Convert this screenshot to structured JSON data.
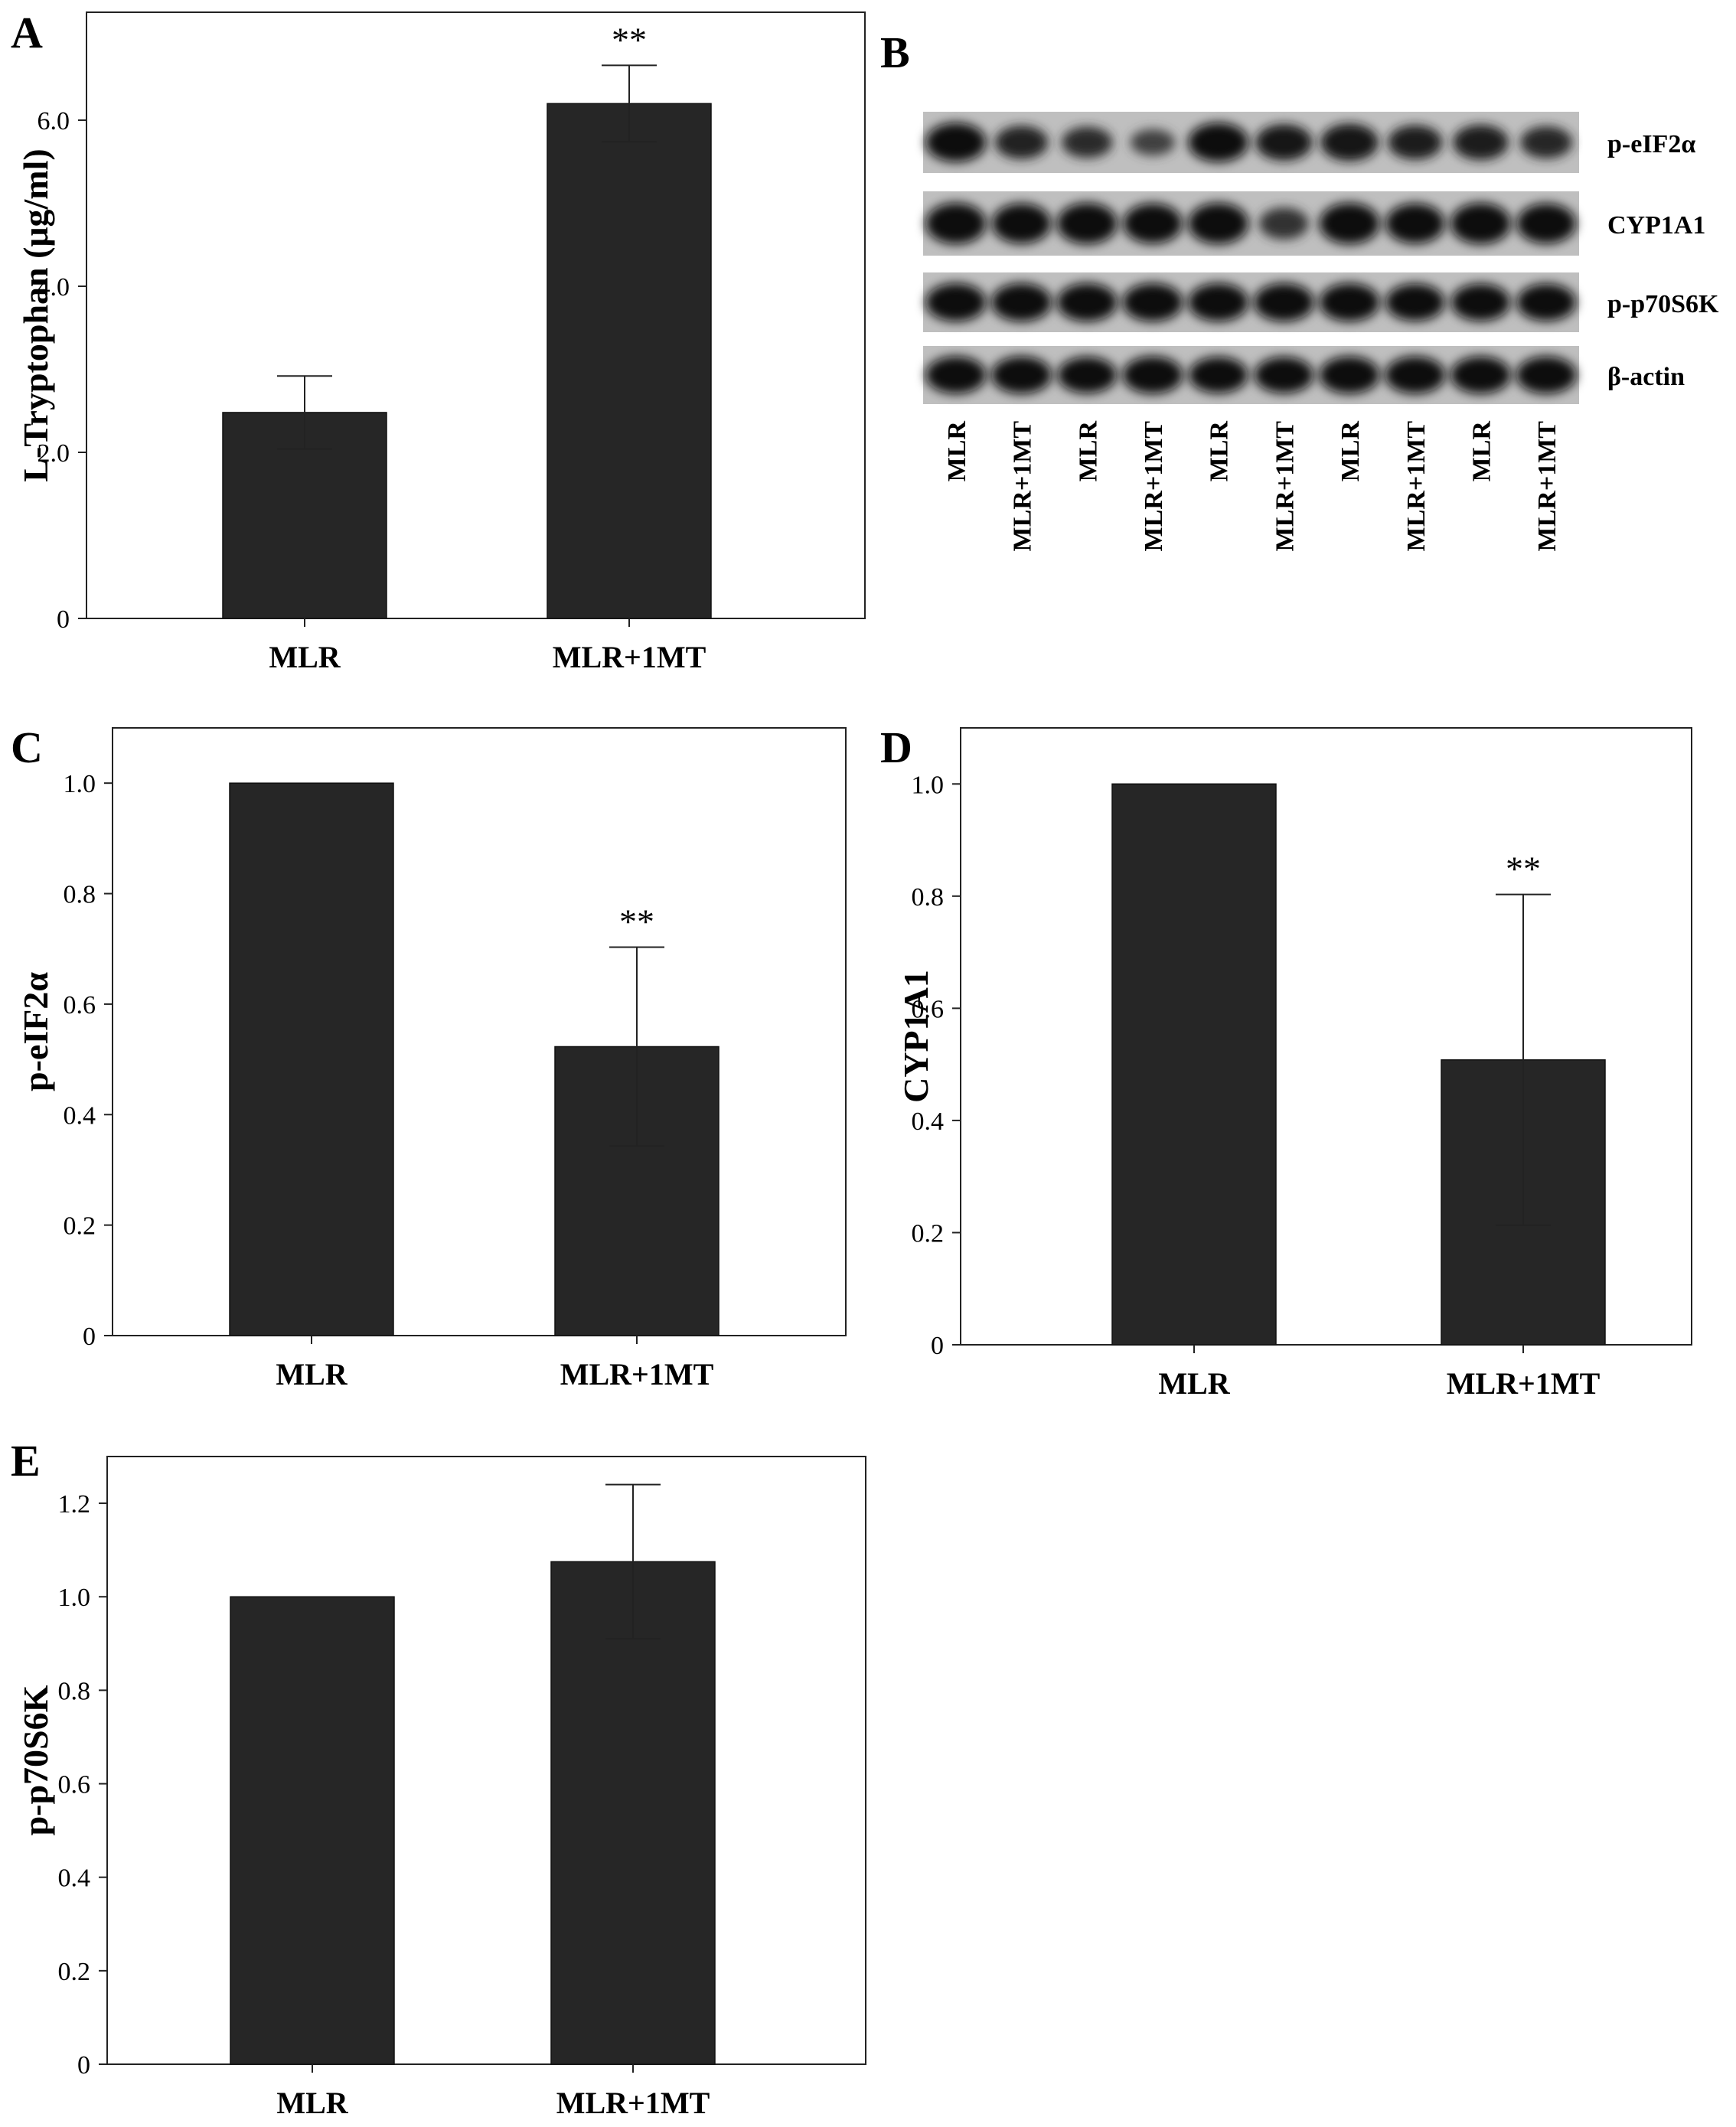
{
  "chart_data": [
    {
      "panel": "A",
      "type": "bar",
      "categories": [
        "MLR",
        "MLR+1MT"
      ],
      "values": [
        2.48,
        6.2
      ],
      "errors": [
        0.44,
        0.46
      ],
      "significance": [
        "",
        "**"
      ],
      "ylabel": "L-Tryptophan (μg/ml)",
      "xlabel": "",
      "ylim": [
        0,
        7.3
      ],
      "yticks": [
        0,
        2.0,
        4.0,
        6.0
      ],
      "ytick_labels": [
        "0",
        "2.0",
        "4.0",
        "6.0"
      ],
      "grid": false,
      "bar_color": "#262626"
    },
    {
      "panel": "C",
      "type": "bar",
      "categories": [
        "MLR",
        "MLR+1MT"
      ],
      "values": [
        1.0,
        0.523
      ],
      "errors": [
        0.0,
        0.18
      ],
      "significance": [
        "",
        "**"
      ],
      "ylabel": "p-eIF2α",
      "xlabel": "",
      "ylim": [
        0,
        1.1
      ],
      "yticks": [
        0,
        0.2,
        0.4,
        0.6,
        0.8,
        1.0
      ],
      "ytick_labels": [
        "0",
        "0.2",
        "0.4",
        "0.6",
        "0.8",
        "1.0"
      ],
      "grid": false,
      "bar_color": "#262626"
    },
    {
      "panel": "D",
      "type": "bar",
      "categories": [
        "MLR",
        "MLR+1MT"
      ],
      "values": [
        1.0,
        0.508
      ],
      "errors": [
        0.0,
        0.295
      ],
      "significance": [
        "",
        "**"
      ],
      "ylabel": "CYP1A1",
      "xlabel": "",
      "ylim": [
        0,
        1.1
      ],
      "yticks": [
        0,
        0.2,
        0.4,
        0.6,
        0.8,
        1.0
      ],
      "ytick_labels": [
        "0",
        "0.2",
        "0.4",
        "0.6",
        "0.8",
        "1.0"
      ],
      "grid": false,
      "bar_color": "#262626"
    },
    {
      "panel": "E",
      "type": "bar",
      "categories": [
        "MLR",
        "MLR+1MT"
      ],
      "values": [
        1.0,
        1.075
      ],
      "errors": [
        0.0,
        0.165
      ],
      "significance": [
        "",
        ""
      ],
      "ylabel": "p-p70S6K",
      "xlabel": "",
      "ylim": [
        0,
        1.3
      ],
      "yticks": [
        0,
        0.2,
        0.4,
        0.6,
        0.8,
        1.0,
        1.2
      ],
      "ytick_labels": [
        "0",
        "0.2",
        "0.4",
        "0.6",
        "0.8",
        "1.0",
        "1.2"
      ],
      "grid": false,
      "bar_color": "#262626"
    }
  ],
  "blot": {
    "panel": "B",
    "rows": [
      "p-eIF2α",
      "CYP1A1",
      "p-p70S6K",
      "β-actin"
    ],
    "lanes": [
      "MLR",
      "MLR+1MT",
      "MLR",
      "MLR+1MT",
      "MLR",
      "MLR+1MT",
      "MLR",
      "MLR+1MT",
      "MLR",
      "MLR+1MT"
    ],
    "band_intensity": [
      [
        1.0,
        0.7,
        0.6,
        0.35,
        1.0,
        0.85,
        0.9,
        0.75,
        0.8,
        0.65
      ],
      [
        1.0,
        0.95,
        1.0,
        0.95,
        1.0,
        0.55,
        1.0,
        0.95,
        1.0,
        0.95
      ],
      [
        1.0,
        1.0,
        1.0,
        1.0,
        1.0,
        1.0,
        1.0,
        0.95,
        0.95,
        0.95
      ],
      [
        1.0,
        1.0,
        0.95,
        1.0,
        0.95,
        0.95,
        1.0,
        1.0,
        1.0,
        1.0
      ]
    ]
  }
}
